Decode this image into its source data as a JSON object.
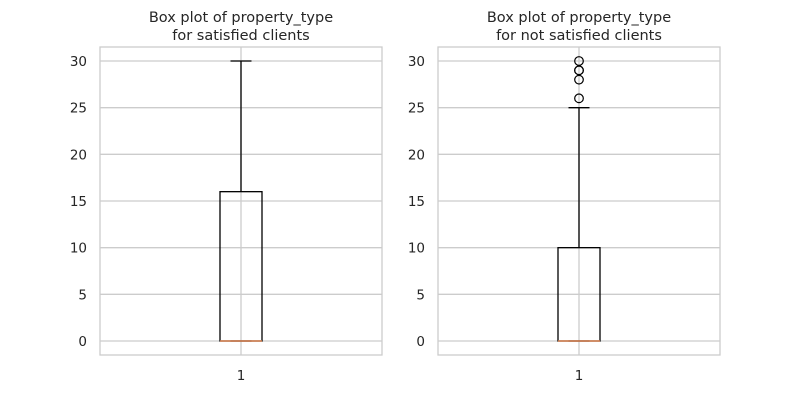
{
  "chart_data": [
    {
      "type": "box",
      "title_lines": [
        "Box plot of property_type",
        "for satisfied clients"
      ],
      "categories": [
        "1"
      ],
      "ylim": [
        -1.5,
        31.5
      ],
      "yticks": [
        0,
        5,
        10,
        15,
        20,
        25,
        30
      ],
      "grid": true,
      "box": {
        "whisker_low": 0,
        "q1": 0,
        "median": 0,
        "q3": 16,
        "whisker_high": 30,
        "outliers": []
      }
    },
    {
      "type": "box",
      "title_lines": [
        "Box plot of property_type",
        "for not satisfied clients"
      ],
      "categories": [
        "1"
      ],
      "ylim": [
        -1.5,
        31.5
      ],
      "yticks": [
        0,
        5,
        10,
        15,
        20,
        25,
        30
      ],
      "grid": true,
      "box": {
        "whisker_low": 0,
        "q1": 0,
        "median": 0,
        "q3": 10,
        "whisker_high": 25,
        "outliers": [
          26,
          28,
          29,
          29,
          30
        ]
      }
    }
  ],
  "colors": {
    "grid": "#cccccc",
    "frame": "#cccccc",
    "box": "#000000",
    "median": "#dd8452",
    "text": "#262626"
  }
}
